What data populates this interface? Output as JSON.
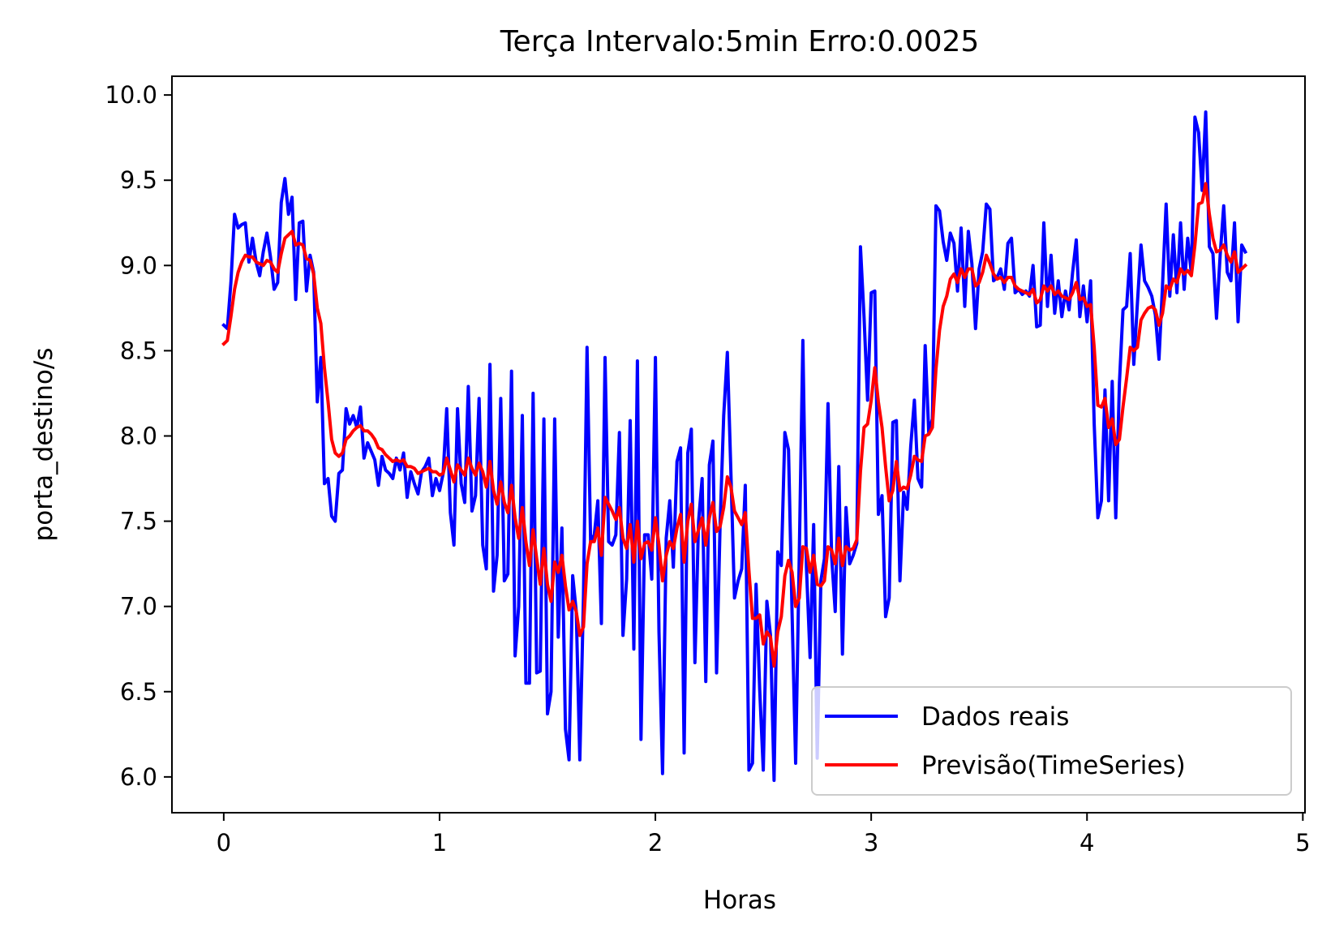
{
  "chart_data": {
    "type": "line",
    "title": "Terça Intervalo:5min Erro:0.0025",
    "xlabel": "Horas",
    "ylabel": "porta_destino/s",
    "xlim": [
      -0.24,
      5.01
    ],
    "ylim": [
      5.79,
      10.11
    ],
    "xticks": [
      0,
      1,
      2,
      3,
      4,
      5
    ],
    "yticks": [
      6.0,
      6.5,
      7.0,
      7.5,
      8.0,
      8.5,
      9.0,
      9.5,
      10.0
    ],
    "xtick_labels": [
      "0",
      "1",
      "2",
      "3",
      "4",
      "5"
    ],
    "ytick_labels": [
      "6.0",
      "6.5",
      "7.0",
      "7.5",
      "8.0",
      "8.5",
      "9.0",
      "9.5",
      "10.0"
    ],
    "grid": false,
    "legend_position": "lower-right",
    "series": [
      {
        "name": "Dados reais",
        "color": "#0000ff",
        "x_start": 0,
        "x_step": 0.016667,
        "values": [
          8.65,
          8.63,
          8.9,
          9.3,
          9.22,
          9.24,
          9.25,
          9.02,
          9.16,
          9.02,
          8.94,
          9.08,
          9.19,
          9.05,
          8.86,
          8.9,
          9.37,
          9.51,
          9.3,
          9.4,
          8.8,
          9.25,
          9.26,
          8.85,
          9.06,
          8.96,
          8.2,
          8.46,
          7.72,
          7.75,
          7.53,
          7.5,
          7.78,
          7.8,
          8.16,
          8.07,
          8.12,
          8.05,
          8.17,
          7.87,
          7.96,
          7.91,
          7.86,
          7.71,
          7.88,
          7.8,
          7.78,
          7.75,
          7.87,
          7.8,
          7.9,
          7.64,
          7.79,
          7.72,
          7.66,
          7.79,
          7.82,
          7.87,
          7.65,
          7.75,
          7.68,
          7.78,
          8.16,
          7.55,
          7.36,
          8.16,
          7.72,
          7.61,
          8.29,
          7.56,
          7.65,
          8.22,
          7.36,
          7.22,
          8.42,
          7.09,
          7.3,
          8.22,
          7.15,
          7.19,
          8.38,
          6.71,
          7.0,
          8.12,
          6.55,
          6.55,
          8.25,
          6.61,
          6.62,
          8.1,
          6.37,
          6.5,
          8.1,
          6.82,
          7.46,
          6.28,
          6.1,
          7.18,
          6.97,
          6.1,
          7.06,
          8.52,
          7.38,
          7.42,
          7.62,
          6.9,
          8.46,
          7.38,
          7.36,
          7.42,
          8.02,
          6.83,
          7.16,
          8.09,
          6.75,
          8.44,
          6.22,
          7.42,
          7.42,
          7.16,
          8.46,
          6.85,
          6.02,
          7.4,
          7.62,
          7.23,
          7.85,
          7.93,
          6.14,
          7.9,
          8.04,
          6.67,
          7.5,
          7.75,
          6.56,
          7.83,
          7.97,
          6.61,
          7.49,
          8.12,
          8.49,
          7.78,
          7.05,
          7.15,
          7.22,
          7.71,
          6.04,
          6.08,
          7.13,
          6.51,
          6.04,
          7.03,
          6.83,
          5.98,
          7.32,
          7.24,
          8.02,
          7.92,
          6.96,
          6.08,
          7.31,
          8.56,
          7.23,
          6.7,
          7.48,
          6.11,
          7.15,
          7.28,
          8.19,
          7.29,
          6.97,
          7.82,
          6.72,
          7.58,
          7.25,
          7.3,
          7.37,
          9.11,
          8.7,
          8.21,
          8.84,
          8.85,
          7.54,
          7.65,
          6.94,
          7.05,
          8.08,
          8.09,
          7.15,
          7.67,
          7.57,
          7.94,
          8.21,
          7.75,
          7.7,
          8.53,
          8.02,
          8.1,
          9.35,
          9.32,
          9.14,
          9.03,
          9.19,
          9.13,
          8.85,
          9.22,
          8.76,
          9.2,
          9.01,
          8.63,
          8.98,
          9.08,
          9.36,
          9.33,
          8.91,
          8.93,
          8.98,
          8.86,
          9.13,
          9.16,
          8.84,
          8.86,
          8.83,
          8.85,
          8.82,
          9.0,
          8.64,
          8.65,
          9.25,
          8.76,
          9.06,
          8.72,
          8.91,
          8.7,
          8.85,
          8.74,
          8.96,
          9.15,
          8.7,
          8.88,
          8.67,
          8.91,
          8.07,
          7.52,
          7.62,
          8.27,
          7.62,
          8.32,
          7.52,
          8.31,
          8.74,
          8.76,
          9.07,
          8.42,
          8.78,
          9.12,
          8.91,
          8.87,
          8.82,
          8.71,
          8.45,
          8.89,
          9.36,
          8.82,
          9.18,
          8.84,
          9.25,
          8.86,
          9.16,
          8.95,
          9.87,
          9.78,
          9.44,
          9.9,
          9.11,
          9.07,
          8.69,
          9.06,
          9.35,
          8.96,
          8.91,
          9.25,
          8.67,
          9.12,
          9.08
        ]
      },
      {
        "name": "Previsão(TimeSeries)",
        "color": "#ff0000",
        "x_start": 0,
        "x_step": 0.016667,
        "values": [
          8.54,
          8.56,
          8.7,
          8.86,
          8.96,
          9.02,
          9.06,
          9.05,
          9.05,
          9.02,
          9.01,
          9.0,
          9.03,
          9.02,
          8.98,
          8.96,
          9.07,
          9.16,
          9.18,
          9.2,
          9.12,
          9.13,
          9.12,
          9.04,
          9.03,
          8.95,
          8.75,
          8.66,
          8.4,
          8.2,
          7.98,
          7.9,
          7.88,
          7.9,
          7.98,
          8.0,
          8.03,
          8.05,
          8.06,
          8.03,
          8.03,
          8.01,
          7.98,
          7.93,
          7.92,
          7.89,
          7.87,
          7.85,
          7.86,
          7.85,
          7.86,
          7.82,
          7.82,
          7.81,
          7.78,
          7.79,
          7.8,
          7.81,
          7.79,
          7.79,
          7.77,
          7.78,
          7.87,
          7.8,
          7.73,
          7.83,
          7.8,
          7.77,
          7.87,
          7.81,
          7.77,
          7.84,
          7.79,
          7.7,
          7.85,
          7.68,
          7.6,
          7.73,
          7.61,
          7.55,
          7.71,
          7.52,
          7.4,
          7.58,
          7.38,
          7.24,
          7.45,
          7.28,
          7.13,
          7.34,
          7.13,
          7.03,
          7.26,
          7.2,
          7.3,
          7.12,
          6.98,
          7.03,
          6.97,
          6.83,
          6.88,
          7.25,
          7.38,
          7.38,
          7.46,
          7.3,
          7.64,
          7.6,
          7.56,
          7.51,
          7.58,
          7.4,
          7.34,
          7.48,
          7.26,
          7.5,
          7.28,
          7.37,
          7.38,
          7.33,
          7.52,
          7.36,
          7.15,
          7.3,
          7.38,
          7.34,
          7.46,
          7.54,
          7.26,
          7.5,
          7.6,
          7.38,
          7.45,
          7.52,
          7.36,
          7.52,
          7.61,
          7.44,
          7.47,
          7.58,
          7.76,
          7.7,
          7.56,
          7.52,
          7.48,
          7.55,
          7.21,
          6.93,
          6.93,
          6.95,
          6.78,
          6.85,
          6.82,
          6.65,
          6.85,
          6.94,
          7.18,
          7.27,
          7.2,
          7.0,
          7.05,
          7.35,
          7.34,
          7.2,
          7.3,
          7.13,
          7.12,
          7.15,
          7.35,
          7.33,
          7.25,
          7.4,
          7.24,
          7.35,
          7.33,
          7.34,
          7.39,
          7.79,
          8.05,
          8.07,
          8.21,
          8.4,
          8.2,
          8.05,
          7.82,
          7.62,
          7.68,
          7.85,
          7.68,
          7.7,
          7.69,
          7.77,
          7.88,
          7.86,
          7.85,
          8.0,
          8.01,
          8.05,
          8.39,
          8.62,
          8.76,
          8.82,
          8.92,
          8.95,
          8.9,
          8.98,
          8.93,
          8.98,
          8.98,
          8.88,
          8.9,
          8.96,
          9.06,
          9.01,
          8.95,
          8.92,
          8.93,
          8.9,
          8.93,
          8.93,
          8.88,
          8.86,
          8.85,
          8.84,
          8.83,
          8.86,
          8.78,
          8.8,
          8.88,
          8.85,
          8.88,
          8.83,
          8.85,
          8.82,
          8.81,
          8.8,
          8.84,
          8.9,
          8.8,
          8.81,
          8.76,
          8.77,
          8.52,
          8.18,
          8.17,
          8.22,
          8.05,
          8.1,
          7.95,
          7.98,
          8.17,
          8.34,
          8.52,
          8.5,
          8.52,
          8.68,
          8.72,
          8.75,
          8.76,
          8.74,
          8.65,
          8.72,
          8.88,
          8.86,
          8.92,
          8.9,
          8.98,
          8.95,
          8.97,
          8.94,
          9.12,
          9.36,
          9.37,
          9.48,
          9.3,
          9.16,
          9.08,
          9.09,
          9.12,
          9.06,
          9.02,
          9.08,
          8.96,
          8.98,
          9.0
        ]
      }
    ]
  }
}
